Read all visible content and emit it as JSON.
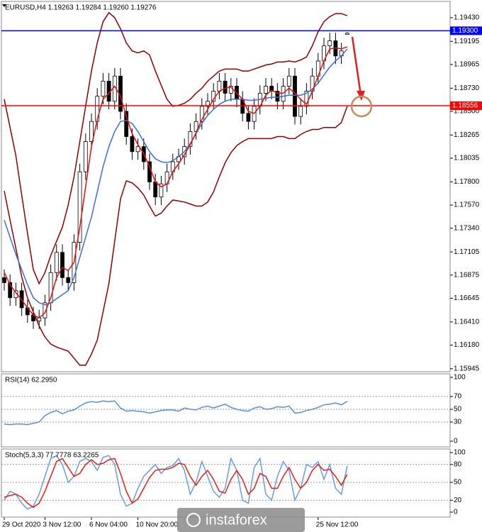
{
  "watermark": "instaforex",
  "chart_data": [
    {
      "type": "candlestick",
      "title": "EURUSD,H4  1.19263 1.19284 1.19260 1.19276",
      "categories": [
        "29 Oct 2020",
        null,
        null,
        null,
        null,
        null,
        null,
        "3 Nov 12:00",
        null,
        null,
        null,
        null,
        null,
        null,
        null,
        "6 Nov 04:00",
        null,
        null,
        null,
        null,
        null,
        null,
        null,
        "10 Nov 20:00",
        null,
        null,
        null,
        null,
        null,
        null,
        null,
        null,
        null,
        null,
        null,
        null,
        null,
        null,
        null,
        null,
        null,
        null,
        null,
        null,
        null,
        null,
        null,
        null,
        null,
        null,
        null,
        null,
        null,
        null,
        "25 Nov 12:00",
        null,
        null,
        null,
        null,
        null
      ],
      "open": [
        1.1685,
        1.168,
        1.1665,
        1.1672,
        1.1655,
        1.1648,
        1.1642,
        1.1645,
        1.166,
        1.169,
        1.171,
        1.1685,
        1.168,
        1.172,
        1.179,
        1.182,
        1.184,
        1.1865,
        1.188,
        1.186,
        1.1885,
        1.185,
        1.1825,
        1.181,
        1.1815,
        1.18,
        1.178,
        1.1765,
        1.1778,
        1.179,
        1.18,
        1.1805,
        1.1815,
        1.183,
        1.184,
        1.1855,
        1.186,
        1.187,
        1.188,
        1.1868,
        1.1875,
        1.1862,
        1.1848,
        1.184,
        1.1855,
        1.1868,
        1.1875,
        1.187,
        1.186,
        1.1875,
        1.1885,
        1.1845,
        1.1855,
        1.187,
        1.1885,
        1.19,
        1.1915,
        1.192,
        1.1905,
        1.19263
      ],
      "high": [
        1.1693,
        1.1688,
        1.168,
        1.168,
        1.1663,
        1.1656,
        1.1653,
        1.1668,
        1.1698,
        1.1718,
        1.1718,
        1.1693,
        1.1728,
        1.1798,
        1.1828,
        1.1848,
        1.1873,
        1.1888,
        1.1888,
        1.1893,
        1.1893,
        1.1858,
        1.1833,
        1.1823,
        1.1823,
        1.1808,
        1.1788,
        1.1786,
        1.1798,
        1.1808,
        1.1813,
        1.1823,
        1.1838,
        1.1848,
        1.1863,
        1.1868,
        1.1878,
        1.1888,
        1.1888,
        1.1883,
        1.1883,
        1.187,
        1.1856,
        1.1863,
        1.1876,
        1.1883,
        1.1883,
        1.1878,
        1.1883,
        1.1893,
        1.1893,
        1.1863,
        1.1878,
        1.1893,
        1.1908,
        1.1923,
        1.1928,
        1.1928,
        1.1918,
        1.19284
      ],
      "low": [
        1.1672,
        1.1657,
        1.1657,
        1.1647,
        1.164,
        1.1634,
        1.1634,
        1.1637,
        1.1652,
        1.1682,
        1.1677,
        1.1672,
        1.1672,
        1.1712,
        1.1782,
        1.1812,
        1.1832,
        1.1857,
        1.1852,
        1.1852,
        1.1842,
        1.1817,
        1.1802,
        1.1802,
        1.1792,
        1.1772,
        1.1757,
        1.1757,
        1.177,
        1.1782,
        1.1792,
        1.1797,
        1.1807,
        1.1822,
        1.1832,
        1.1847,
        1.1852,
        1.1862,
        1.186,
        1.186,
        1.1854,
        1.184,
        1.1832,
        1.1832,
        1.1847,
        1.186,
        1.1862,
        1.1852,
        1.1852,
        1.1867,
        1.1837,
        1.1837,
        1.1847,
        1.1862,
        1.1877,
        1.1892,
        1.1907,
        1.1897,
        1.1897,
        1.1926
      ],
      "close": [
        1.168,
        1.1665,
        1.1672,
        1.1655,
        1.1648,
        1.1642,
        1.1645,
        1.166,
        1.169,
        1.171,
        1.1685,
        1.168,
        1.172,
        1.179,
        1.182,
        1.184,
        1.1865,
        1.188,
        1.186,
        1.1885,
        1.185,
        1.1825,
        1.181,
        1.1815,
        1.18,
        1.178,
        1.1765,
        1.1778,
        1.179,
        1.18,
        1.1805,
        1.1815,
        1.183,
        1.184,
        1.1855,
        1.186,
        1.187,
        1.188,
        1.1868,
        1.1875,
        1.1862,
        1.1848,
        1.184,
        1.1855,
        1.1868,
        1.1875,
        1.187,
        1.186,
        1.1875,
        1.1885,
        1.1845,
        1.1855,
        1.187,
        1.1885,
        1.19,
        1.1915,
        1.192,
        1.1905,
        1.191,
        1.19276
      ],
      "series": [
        {
          "color": "#8b0000",
          "values": [
            1.1862,
            1.1834,
            1.1806,
            1.1767,
            1.1729,
            1.1693,
            1.1679,
            1.169,
            1.1707,
            1.1721,
            1.1735,
            1.1757,
            1.1785,
            1.182,
            1.1855,
            1.189,
            1.1918,
            1.1939,
            1.1948,
            1.1943,
            1.1932,
            1.1918,
            1.191,
            1.1908,
            1.191,
            1.1906,
            1.189,
            1.1876,
            1.1862,
            1.1855,
            1.1856,
            1.1858,
            1.1862,
            1.1868,
            1.1873,
            1.188,
            1.1885,
            1.189,
            1.1892,
            1.1892,
            1.1892,
            1.189,
            1.189,
            1.1892,
            1.1894,
            1.1896,
            1.1897,
            1.1899,
            1.1899,
            1.19,
            1.1899,
            1.1901,
            1.1904,
            1.1915,
            1.1929,
            1.1939,
            1.1944,
            1.1947,
            1.1947,
            1.1945
          ]
        },
        {
          "color": "#8b0000",
          "values": [
            1.1771,
            1.1742,
            1.1714,
            1.1686,
            1.1665,
            1.1651,
            1.1637,
            1.1626,
            1.1619,
            1.1616,
            1.1614,
            1.1612,
            1.1605,
            1.1598,
            1.1598,
            1.1609,
            1.1623,
            1.1651,
            1.1679,
            1.1721,
            1.1763,
            1.1781,
            1.1779,
            1.1774,
            1.1767,
            1.1756,
            1.1746,
            1.1749,
            1.1756,
            1.1762,
            1.1761,
            1.176,
            1.1758,
            1.1756,
            1.1756,
            1.176,
            1.177,
            1.1785,
            1.1799,
            1.1809,
            1.1816,
            1.182,
            1.1823,
            1.1823,
            1.1823,
            1.1823,
            1.1823,
            1.1825,
            1.1825,
            1.1823,
            1.1823,
            1.1827,
            1.183,
            1.1832,
            1.1832,
            1.1834,
            1.1834,
            1.1834,
            1.1839,
            1.1855
          ]
        },
        {
          "color": "#3c6fd0",
          "values": [
            1.1742,
            1.1725,
            1.1708,
            1.1693,
            1.1678,
            1.1665,
            1.166,
            1.1658,
            1.166,
            1.1664,
            1.1668,
            1.1672,
            1.1685,
            1.1705,
            1.1725,
            1.1745,
            1.177,
            1.1795,
            1.1815,
            1.183,
            1.184,
            1.1841,
            1.1838,
            1.183,
            1.182,
            1.181,
            1.1803,
            1.18,
            1.1799,
            1.1801,
            1.1805,
            1.181,
            1.1818,
            1.1828,
            1.1838,
            1.1846,
            1.1852,
            1.1857,
            1.186,
            1.1862,
            1.1862,
            1.1862,
            1.1861,
            1.1861,
            1.1862,
            1.1863,
            1.1864,
            1.1864,
            1.1865,
            1.1866,
            1.1866,
            1.1866,
            1.1868,
            1.1872,
            1.1878,
            1.1886,
            1.1894,
            1.19,
            1.1905,
            1.1912
          ]
        },
        {
          "color": "#e01010",
          "values": [
            1.169,
            1.1678,
            1.167,
            1.1663,
            1.1655,
            1.1648,
            1.1645,
            1.165,
            1.1665,
            1.1685,
            1.1695,
            1.1692,
            1.17,
            1.1735,
            1.1775,
            1.1815,
            1.1842,
            1.1862,
            1.1868,
            1.1875,
            1.1865,
            1.1845,
            1.1828,
            1.1817,
            1.1808,
            1.1795,
            1.178,
            1.1775,
            1.1778,
            1.179,
            1.1798,
            1.1807,
            1.1817,
            1.1829,
            1.1842,
            1.1852,
            1.1862,
            1.187,
            1.1873,
            1.1874,
            1.1868,
            1.1862,
            1.185,
            1.1848,
            1.1855,
            1.1866,
            1.1871,
            1.1868,
            1.1868,
            1.1873,
            1.1868,
            1.1862,
            1.1857,
            1.187,
            1.1885,
            1.19,
            1.1912,
            1.1913,
            1.1912,
            1.1914
          ]
        }
      ],
      "hlines": [
        {
          "value": 1.193,
          "label": "1.19300",
          "color": "#0000ff"
        },
        {
          "value": 1.18556,
          "label": "1.18556",
          "color": "#ff0000"
        }
      ],
      "ylim": [
        1.1593,
        1.1957
      ],
      "yticks": [
        {
          "value": 1.1943,
          "label": "1.19430"
        },
        1.19195,
        1.18965,
        {
          "value": 1.1873,
          "label": "1.18730"
        },
        {
          "value": 1.185,
          "label": "1.18500"
        },
        1.18265,
        1.18035,
        {
          "value": 1.178,
          "label": "1.17800"
        },
        {
          "value": 1.1757,
          "label": "1.17570"
        },
        {
          "value": 1.1734,
          "label": "1.17340"
        },
        1.17105,
        1.16875,
        1.16645,
        {
          "value": 1.1641,
          "label": "1.16410"
        },
        {
          "value": 1.1618,
          "label": "1.16180"
        },
        1.15945
      ],
      "grid": false
    },
    {
      "type": "line",
      "title": "RSI(14) 62.2950",
      "series": [
        {
          "color": "#5b8fd8",
          "values": [
            27,
            26,
            27,
            27,
            26,
            28,
            30,
            40,
            45,
            48,
            43,
            47,
            49,
            55,
            60,
            62,
            61,
            63,
            62,
            63,
            52,
            47,
            48,
            47,
            46,
            44,
            46,
            48,
            49,
            49,
            47,
            52,
            50,
            49,
            53,
            55,
            52,
            55,
            58,
            53,
            50,
            48,
            47,
            52,
            54,
            50,
            51,
            54,
            53,
            55,
            44,
            45,
            48,
            50,
            53,
            57,
            58,
            60,
            57,
            62.295
          ]
        }
      ],
      "ylim": [
        0,
        100
      ],
      "yticks": [
        0,
        30,
        50,
        70,
        100
      ],
      "grid": true
    },
    {
      "type": "line",
      "title": "Stoch(5,3,3) 77.7778 63.2265",
      "series": [
        {
          "color": "#6a9ce0",
          "values": [
            20,
            35,
            30,
            15,
            5,
            10,
            30,
            60,
            90,
            95,
            80,
            50,
            60,
            85,
            90,
            85,
            70,
            92,
            95,
            80,
            30,
            10,
            15,
            40,
            60,
            70,
            80,
            65,
            75,
            78,
            90,
            70,
            30,
            50,
            85,
            60,
            35,
            25,
            40,
            90,
            70,
            20,
            15,
            75,
            90,
            30,
            20,
            60,
            85,
            70,
            20,
            40,
            80,
            75,
            85,
            55,
            80,
            40,
            30,
            77.7778
          ]
        },
        {
          "color": "#e0201b",
          "values": [
            25,
            28,
            30,
            25,
            15,
            8,
            15,
            35,
            60,
            85,
            90,
            75,
            60,
            65,
            80,
            88,
            80,
            82,
            88,
            90,
            65,
            35,
            15,
            22,
            40,
            58,
            70,
            72,
            72,
            75,
            82,
            80,
            60,
            45,
            60,
            70,
            55,
            35,
            32,
            55,
            70,
            55,
            30,
            40,
            65,
            60,
            40,
            40,
            60,
            75,
            55,
            40,
            50,
            70,
            80,
            70,
            72,
            60,
            45,
            63.2265
          ]
        }
      ],
      "ylim": [
        0,
        100
      ],
      "yticks": [
        0,
        20,
        50,
        80,
        100
      ],
      "grid": true
    }
  ]
}
